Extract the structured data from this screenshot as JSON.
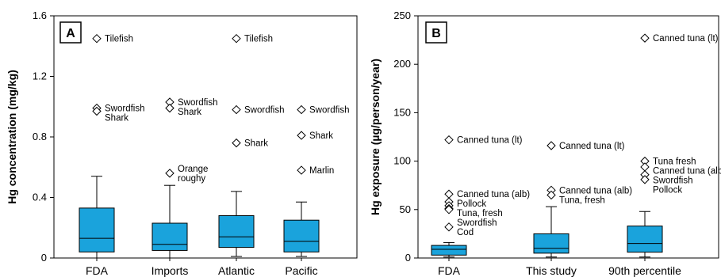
{
  "box_fill": "#1aa3dc",
  "chart_data": [
    {
      "type": "box",
      "panel_label": "A",
      "ylabel": "Hg concentration (mg/kg)",
      "ylim": [
        0,
        1.6
      ],
      "yticks": [
        0,
        0.4,
        0.8,
        1.2,
        1.6
      ],
      "ytick_labels": [
        "0",
        "0.4",
        "0.8",
        "1.2",
        "1.6"
      ],
      "categories": [
        "FDA",
        "Imports",
        "Atlantic",
        "Pacific"
      ],
      "boxes": [
        {
          "category": "FDA",
          "whisker_low": 0.0,
          "q1": 0.04,
          "median": 0.13,
          "q3": 0.33,
          "whisker_high": 0.54
        },
        {
          "category": "Imports",
          "whisker_low": 0.0,
          "q1": 0.05,
          "median": 0.09,
          "q3": 0.23,
          "whisker_high": 0.48
        },
        {
          "category": "Atlantic",
          "whisker_low": 0.01,
          "q1": 0.07,
          "median": 0.14,
          "q3": 0.28,
          "whisker_high": 0.44
        },
        {
          "category": "Pacific",
          "whisker_low": 0.01,
          "q1": 0.04,
          "median": 0.11,
          "q3": 0.25,
          "whisker_high": 0.37
        }
      ],
      "outliers": [
        {
          "category": "FDA",
          "value": 1.45,
          "label": "Tilefish"
        },
        {
          "category": "FDA",
          "value": 0.99,
          "label": "Swordfish"
        },
        {
          "category": "FDA",
          "value": 0.97,
          "label": "Shark"
        },
        {
          "category": "Imports",
          "value": 1.03,
          "label": "Swordfish"
        },
        {
          "category": "Imports",
          "value": 0.99,
          "label": "Shark"
        },
        {
          "category": "Imports",
          "value": 0.56,
          "label": "Orange roughy"
        },
        {
          "category": "Atlantic",
          "value": 1.45,
          "label": "Tilefish"
        },
        {
          "category": "Atlantic",
          "value": 0.98,
          "label": "Swordfish"
        },
        {
          "category": "Atlantic",
          "value": 0.76,
          "label": "Shark"
        },
        {
          "category": "Pacific",
          "value": 0.98,
          "label": "Swordfish"
        },
        {
          "category": "Pacific",
          "value": 0.81,
          "label": "Shark"
        },
        {
          "category": "Pacific",
          "value": 0.58,
          "label": "Marlin"
        }
      ]
    },
    {
      "type": "box",
      "panel_label": "B",
      "ylabel": "Hg exposure (µg/person/year)",
      "ylim": [
        0,
        250
      ],
      "yticks": [
        0,
        50,
        100,
        150,
        200,
        250
      ],
      "ytick_labels": [
        "0",
        "50",
        "100",
        "150",
        "200",
        "250"
      ],
      "categories": [
        "FDA",
        "This study",
        "90th percentile"
      ],
      "boxes": [
        {
          "category": "FDA",
          "whisker_low": 1,
          "q1": 3,
          "median": 9,
          "q3": 13,
          "whisker_high": 16
        },
        {
          "category": "This study",
          "whisker_low": 1,
          "q1": 5,
          "median": 10,
          "q3": 25,
          "whisker_high": 53
        },
        {
          "category": "90th percentile",
          "whisker_low": 1,
          "q1": 6,
          "median": 15,
          "q3": 33,
          "whisker_high": 48
        }
      ],
      "outliers": [
        {
          "category": "FDA",
          "value": 122,
          "label": "Canned tuna (lt)"
        },
        {
          "category": "FDA",
          "value": 66,
          "label": "Canned tuna (alb)"
        },
        {
          "category": "FDA",
          "value": 58,
          "label": "Pollock"
        },
        {
          "category": "FDA",
          "value": 54,
          "label": "Tuna, fresh"
        },
        {
          "category": "FDA",
          "value": 51,
          "label": ""
        },
        {
          "category": "FDA",
          "value": 50,
          "label": "Swordfish"
        },
        {
          "category": "FDA",
          "value": 32,
          "label": "Cod"
        },
        {
          "category": "This study",
          "value": 116,
          "label": "Canned tuna (lt)"
        },
        {
          "category": "This study",
          "value": 70,
          "label": "Canned tuna (alb)"
        },
        {
          "category": "This study",
          "value": 65,
          "label": "Tuna, fresh"
        },
        {
          "category": "90th percentile",
          "value": 227,
          "label": "Canned tuna (lt)"
        },
        {
          "category": "90th percentile",
          "value": 100,
          "label": "Tuna fresh"
        },
        {
          "category": "90th percentile",
          "value": 94,
          "label": "Canned tuna (alb)"
        },
        {
          "category": "90th percentile",
          "value": 86,
          "label": "Swordfish"
        },
        {
          "category": "90th percentile",
          "value": 81,
          "label": "Pollock"
        }
      ]
    }
  ]
}
